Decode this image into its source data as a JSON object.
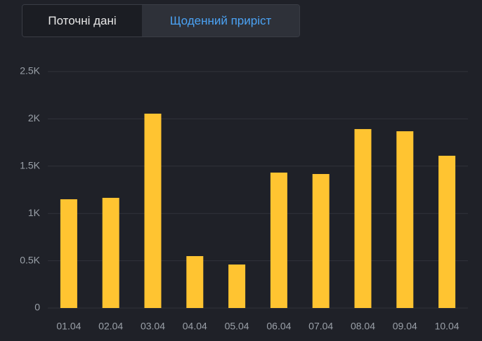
{
  "tabs": [
    "Поточні дані",
    "Щоденний приріст"
  ],
  "chart_data": {
    "type": "bar",
    "categories": [
      "01.04",
      "02.04",
      "03.04",
      "04.04",
      "05.04",
      "06.04",
      "07.04",
      "08.04",
      "09.04",
      "10.04"
    ],
    "values": [
      1150,
      1165,
      2055,
      549,
      460,
      1432,
      1417,
      1892,
      1869,
      1610
    ],
    "color": "#ffc431",
    "ylim": [
      0,
      2500
    ],
    "yticks": [
      0,
      {
        "value": 500,
        "label": "0.5K"
      },
      {
        "value": 1000,
        "label": "1K"
      },
      {
        "value": 1500,
        "label": "1.5K"
      },
      {
        "value": 2000,
        "label": "2K"
      },
      {
        "value": 2500,
        "label": "2.5K"
      }
    ],
    "grid": true
  }
}
